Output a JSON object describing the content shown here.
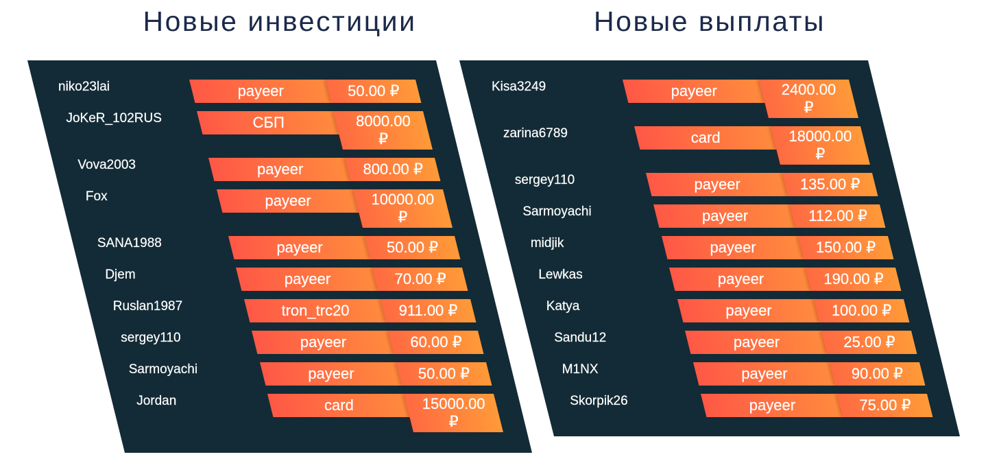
{
  "investments": {
    "title": "Новые инвестиции",
    "rows": [
      {
        "name": "niko23lai",
        "method": "payeer",
        "amount": "50.00 ₽"
      },
      {
        "name": "JoKeR_102RUS",
        "method": "СБП",
        "amount": "8000.00 ₽"
      },
      {
        "name": "Vova2003",
        "method": "payeer",
        "amount": "800.00 ₽"
      },
      {
        "name": "Fox",
        "method": "payeer",
        "amount": "10000.00 ₽"
      },
      {
        "name": "SANA1988",
        "method": "payeer",
        "amount": "50.00 ₽"
      },
      {
        "name": "Djem",
        "method": "payeer",
        "amount": "70.00 ₽"
      },
      {
        "name": "Ruslan1987",
        "method": "tron_trc20",
        "amount": "911.00 ₽"
      },
      {
        "name": "sergey110",
        "method": "payeer",
        "amount": "60.00 ₽"
      },
      {
        "name": "Sarmoyachi",
        "method": "payeer",
        "amount": "50.00 ₽"
      },
      {
        "name": "Jordan",
        "method": "card",
        "amount": "15000.00 ₽"
      }
    ]
  },
  "payouts": {
    "title": "Новые выплаты",
    "rows": [
      {
        "name": "Kisa3249",
        "method": "payeer",
        "amount": "2400.00 ₽"
      },
      {
        "name": "zarina6789",
        "method": "card",
        "amount": "18000.00 ₽"
      },
      {
        "name": "sergey110",
        "method": "payeer",
        "amount": "135.00 ₽"
      },
      {
        "name": "Sarmoyachi",
        "method": "payeer",
        "amount": "112.00 ₽"
      },
      {
        "name": "midjik",
        "method": "payeer",
        "amount": "150.00 ₽"
      },
      {
        "name": "Lewkas",
        "method": "payeer",
        "amount": "190.00 ₽"
      },
      {
        "name": "Katya",
        "method": "payeer",
        "amount": "100.00 ₽"
      },
      {
        "name": "Sandu12",
        "method": "payeer",
        "amount": "25.00 ₽"
      },
      {
        "name": "M1NX",
        "method": "payeer",
        "amount": "90.00 ₽"
      },
      {
        "name": "Skorpik26",
        "method": "payeer",
        "amount": "75.00 ₽"
      }
    ]
  },
  "colors": {
    "title": "#1b2a4a",
    "panel_bg": "#132b36",
    "text": "#ffffff",
    "method_start": "#ff5846",
    "method_end": "#ff8b3d",
    "amount_start": "#ff6a42",
    "amount_end": "#ff9a38"
  }
}
